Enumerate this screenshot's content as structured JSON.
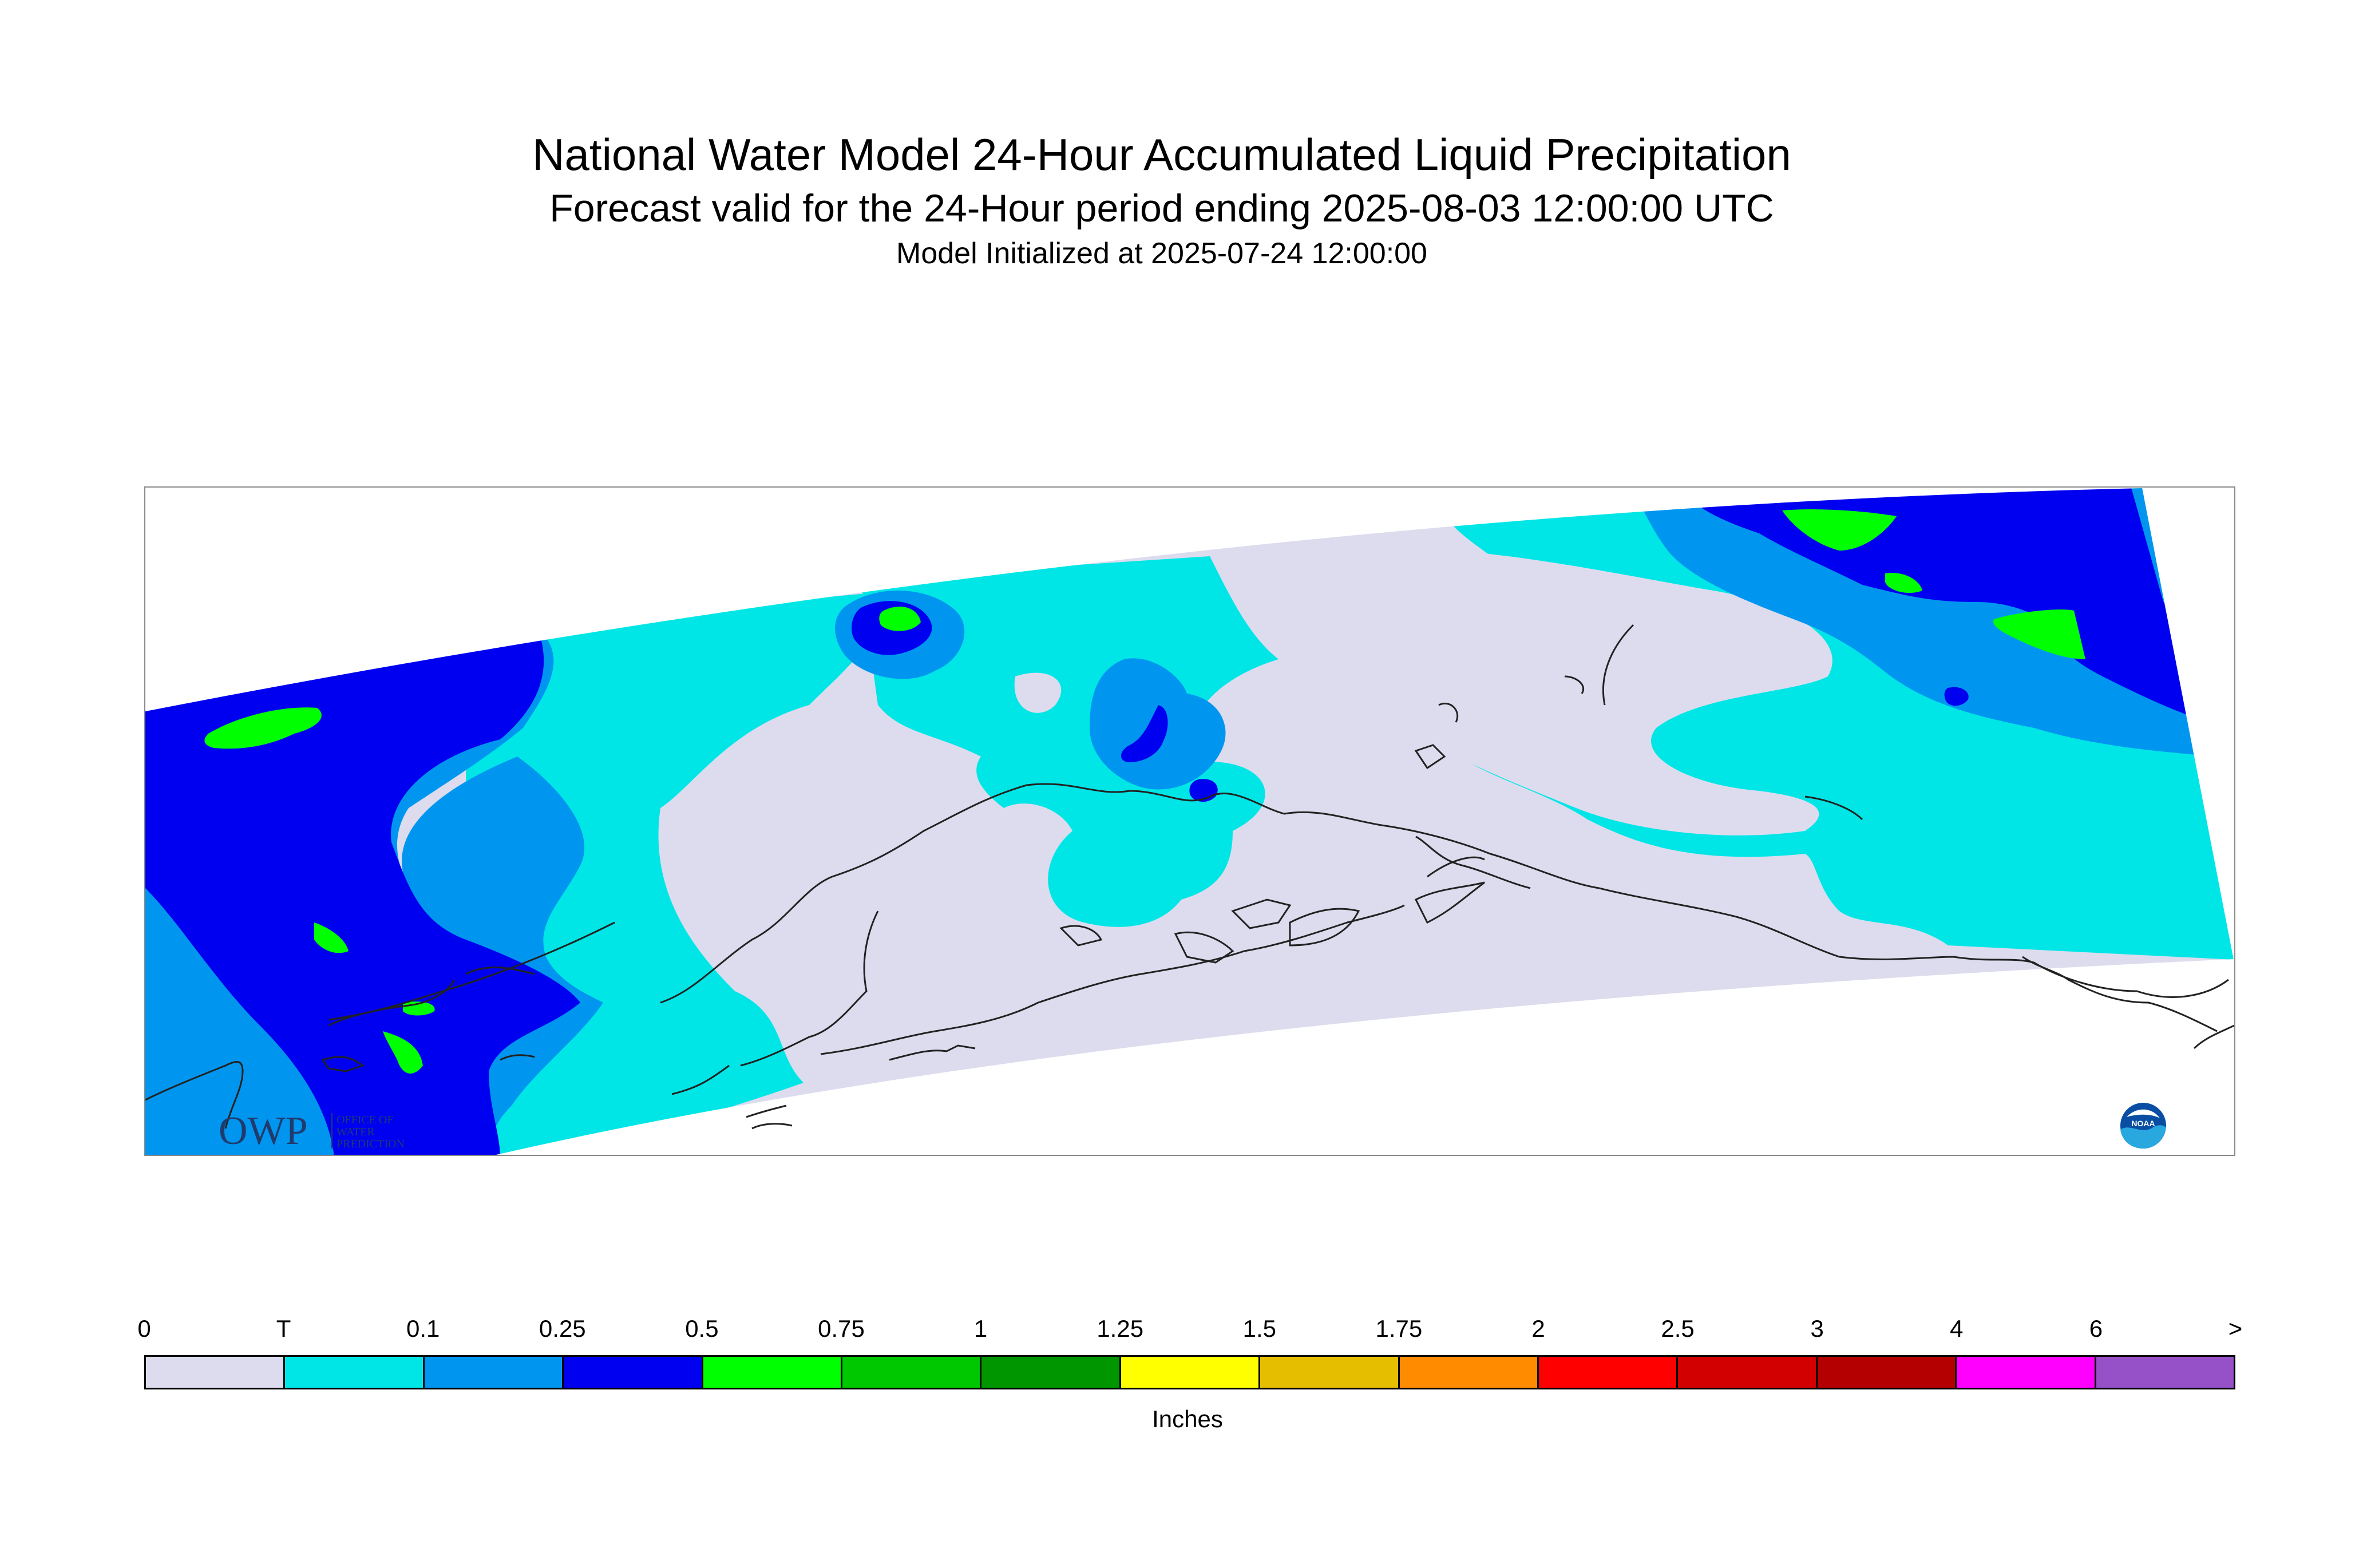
{
  "title": "National Water Model 24-Hour Accumulated Liquid Precipitation",
  "subtitle": "Forecast valid for the 24-Hour period ending 2025-08-03 12:00:00 UTC",
  "init_line": "Model Initialized at 2025-07-24 12:00:00",
  "colors": {
    "none": "#dcdcee",
    "trace": "#00e6e6",
    "light": "#0096f0",
    "moderate": "#0000f0",
    "heavy": "#00ff00",
    "outline": "#222222"
  },
  "logos": {
    "owp": "OWP",
    "owp_text": [
      "OFFICE OF",
      "WATER",
      "PREDICTION"
    ],
    "noaa": "NOAA"
  },
  "legend": {
    "labels": [
      "0",
      "T",
      "0.1",
      "0.25",
      "0.5",
      "0.75",
      "1",
      "1.25",
      "1.5",
      "1.75",
      "2",
      "2.5",
      "3",
      "4",
      "6",
      ">"
    ],
    "colors": [
      "#dcdcee",
      "#00e6e6",
      "#0096f0",
      "#0000f0",
      "#00ff00",
      "#00c800",
      "#009600",
      "#ffff00",
      "#e6be00",
      "#ff8c00",
      "#ff0000",
      "#d20000",
      "#b40000",
      "#ff00ff",
      "#9650c8"
    ],
    "units": "Inches"
  }
}
